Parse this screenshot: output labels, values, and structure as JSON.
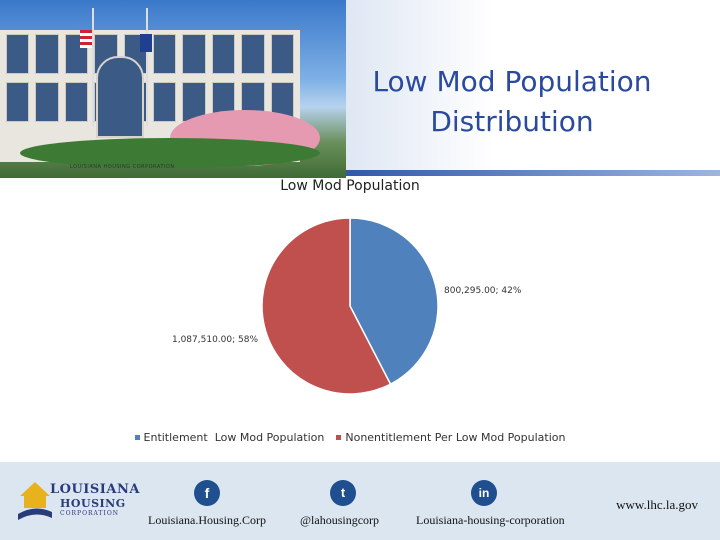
{
  "slide": {
    "title": "Low Mod Population Distribution",
    "photo_sign": "LOUISIANA HOUSING CORPORATION"
  },
  "chart_data": {
    "type": "pie",
    "title": "Low Mod Population",
    "series": [
      {
        "name": "",
        "slices": [
          {
            "label": "Entitlement  Low Mod Population",
            "value": 800295.0,
            "percent": 42,
            "color": "#4f81bd",
            "data_label": "800,295.00; 42%"
          },
          {
            "label": "Nonentitlement Per Low Mod Population",
            "value": 1087510.0,
            "percent": 58,
            "color": "#c0504d",
            "data_label": "1,087,510.00; 58%"
          }
        ]
      }
    ],
    "legend": [
      "Entitlement  Low Mod Population",
      "Nonentitlement Per Low Mod Population"
    ],
    "legend_position": "bottom"
  },
  "footer": {
    "logo": {
      "line1": "LOUISIANA",
      "line2": "HOUSING",
      "line3": "CORPORATION"
    },
    "social": [
      {
        "icon": "facebook-icon",
        "glyph": "f",
        "label": "Louisiana.Housing.Corp"
      },
      {
        "icon": "twitter-icon",
        "glyph": "t",
        "label": "@lahousingcorp"
      },
      {
        "icon": "linkedin-icon",
        "glyph": "in",
        "label": "Louisiana-housing-corporation"
      }
    ],
    "url": "www.lhc.la.gov"
  }
}
